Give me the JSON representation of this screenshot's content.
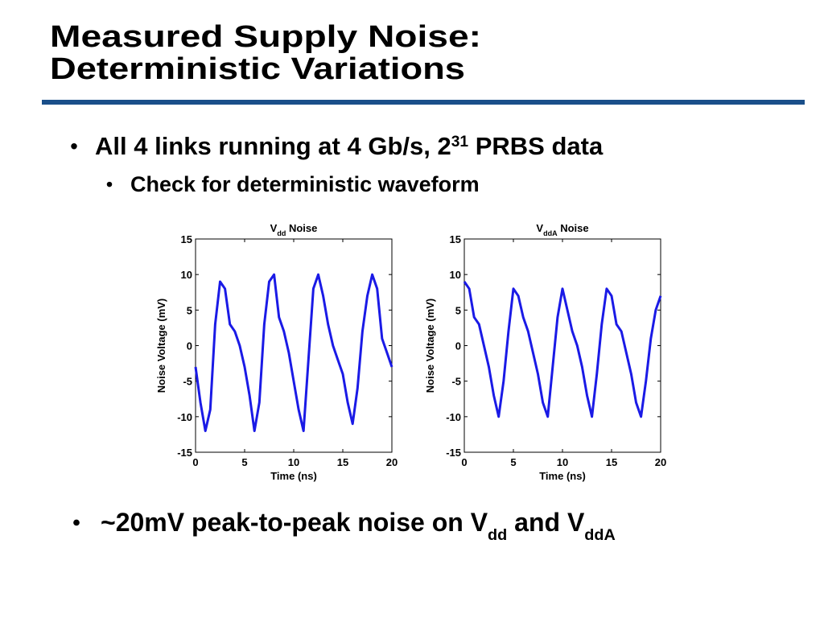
{
  "slide": {
    "title_lines": [
      "Measured Supply Noise:",
      "Deterministic Variations"
    ],
    "bullets": [
      {
        "level": 1,
        "parts": [
          {
            "t": "All 4 links running at 4 Gb/s, 2"
          },
          {
            "t": "31",
            "sup": true
          },
          {
            "t": " PRBS data"
          }
        ]
      },
      {
        "level": 2,
        "parts": [
          {
            "t": "Check for deterministic waveform"
          }
        ]
      },
      {
        "level": 1,
        "parts": [
          {
            "t": "~20mV peak-to-peak noise on V"
          },
          {
            "t": "dd",
            "sub": true
          },
          {
            "t": " and V"
          },
          {
            "t": "ddA",
            "sub": true
          }
        ]
      }
    ]
  },
  "chart_data": [
    {
      "type": "line",
      "title_parts": [
        "V",
        "dd",
        " Noise"
      ],
      "xlabel": "Time (ns)",
      "ylabel": "Noise Voltage (mV)",
      "color": "#1a1ae6",
      "x": [
        0,
        0.5,
        1,
        1.5,
        2,
        2.5,
        3,
        3.5,
        4,
        4.5,
        5,
        5.5,
        6,
        6.5,
        7,
        7.5,
        8,
        8.5,
        9,
        9.5,
        10,
        10.5,
        11,
        11.5,
        12,
        12.5,
        13,
        13.5,
        14,
        14.5,
        15,
        15.5,
        16,
        16.5,
        17,
        17.5,
        18,
        18.5,
        19,
        19.5,
        20
      ],
      "values": [
        -3,
        -8,
        -12,
        -9,
        3,
        9,
        8,
        3,
        2,
        0,
        -3,
        -7,
        -12,
        -8,
        3,
        9,
        10,
        4,
        2,
        -1,
        -5,
        -9,
        -12,
        -2,
        8,
        10,
        7,
        3,
        0,
        -2,
        -4,
        -8,
        -11,
        -6,
        2,
        7,
        10,
        8,
        1,
        -1,
        -3
      ],
      "xlim": [
        0,
        20
      ],
      "ylim": [
        -15,
        15
      ],
      "xticks": [
        0,
        5,
        10,
        15,
        20
      ],
      "yticks": [
        -15,
        -10,
        -5,
        0,
        5,
        10,
        15
      ]
    },
    {
      "type": "line",
      "title_parts": [
        "V",
        "ddA",
        " Noise"
      ],
      "xlabel": "Time (ns)",
      "ylabel": "Noise Voltage (mV)",
      "color": "#1a1ae6",
      "x": [
        0,
        0.5,
        1,
        1.5,
        2,
        2.5,
        3,
        3.5,
        4,
        4.5,
        5,
        5.5,
        6,
        6.5,
        7,
        7.5,
        8,
        8.5,
        9,
        9.5,
        10,
        10.5,
        11,
        11.5,
        12,
        12.5,
        13,
        13.5,
        14,
        14.5,
        15,
        15.5,
        16,
        16.5,
        17,
        17.5,
        18,
        18.5,
        19,
        19.5,
        20
      ],
      "values": [
        9,
        8,
        4,
        3,
        0,
        -3,
        -7,
        -10,
        -5,
        2,
        8,
        7,
        4,
        2,
        -1,
        -4,
        -8,
        -10,
        -3,
        4,
        8,
        5,
        2,
        0,
        -3,
        -7,
        -10,
        -4,
        3,
        8,
        7,
        3,
        2,
        -1,
        -4,
        -8,
        -10,
        -5,
        1,
        5,
        7
      ],
      "xlim": [
        0,
        20
      ],
      "ylim": [
        -15,
        15
      ],
      "xticks": [
        0,
        5,
        10,
        15,
        20
      ],
      "yticks": [
        -15,
        -10,
        -5,
        0,
        5,
        10,
        15
      ]
    }
  ]
}
